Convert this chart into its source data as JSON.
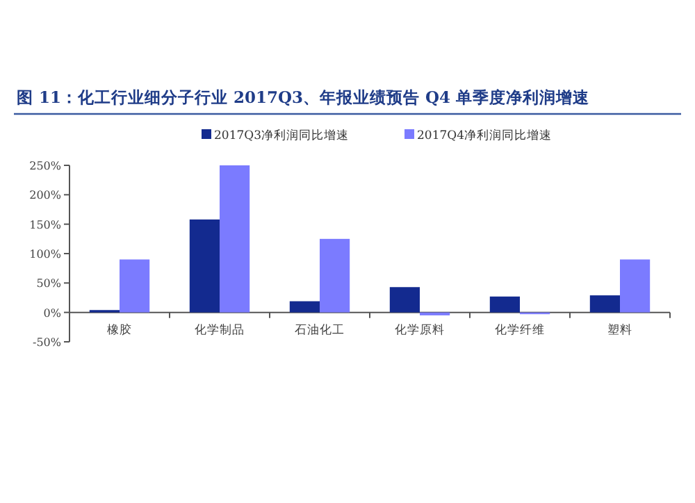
{
  "chart_data": {
    "type": "bar",
    "title": "图 11：化工行业细分子行业 2017Q3、年报业绩预告 Q4 单季度净利润增速",
    "categories": [
      "橡胶",
      "化学制品",
      "石油化工",
      "化学原料",
      "化学纤维",
      "塑料"
    ],
    "series": [
      {
        "name": "2017Q3净利润同比增速",
        "color": "#132a8f",
        "values": [
          4,
          158,
          19,
          43,
          27,
          29
        ]
      },
      {
        "name": "2017Q4净利润同比增速",
        "color": "#7b7bff",
        "values": [
          90,
          250,
          125,
          -5,
          -3,
          90
        ]
      }
    ],
    "ylim": [
      -50,
      250
    ],
    "yticks": [
      {
        "value": -50,
        "label": "-50%"
      },
      {
        "value": 0,
        "label": "0%"
      },
      {
        "value": 50,
        "label": "50%"
      },
      {
        "value": 100,
        "label": "100%"
      },
      {
        "value": 150,
        "label": "150%"
      },
      {
        "value": 200,
        "label": "200%"
      },
      {
        "value": 250,
        "label": "250%"
      }
    ],
    "legend": "top"
  }
}
